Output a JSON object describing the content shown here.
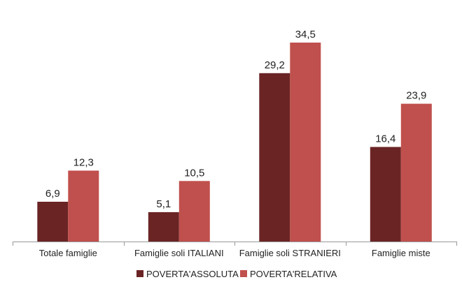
{
  "chart_data": {
    "type": "bar",
    "categories": [
      "Totale famiglie",
      "Famiglie soli ITALIANI",
      "Famiglie soli STRANIERI",
      "Famiglie miste"
    ],
    "series": [
      {
        "name": "POVERTA'ASSOLUTA",
        "values": [
          6.9,
          5.1,
          29.2,
          16.4
        ],
        "labels": [
          "6,9",
          "5,1",
          "29,2",
          "16,4"
        ],
        "color": "#6b2424"
      },
      {
        "name": "POVERTA'RELATIVA",
        "values": [
          12.3,
          10.5,
          34.5,
          23.9
        ],
        "labels": [
          "12,3",
          "10,5",
          "34,5",
          "23,9"
        ],
        "color": "#c0504d"
      }
    ],
    "ylim": [
      0,
      40
    ],
    "grid": false,
    "legend_position": "bottom",
    "title": "",
    "xlabel": "",
    "ylabel": ""
  }
}
